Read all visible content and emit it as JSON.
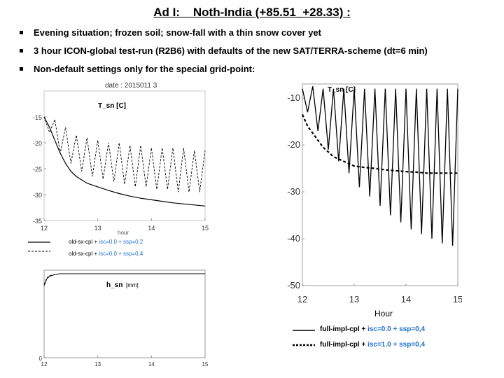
{
  "header": {
    "title": "Ad I:    Noth-India (+85.51_+28.33) :",
    "bullets": [
      "Evening situation; frozen soil; snow-fall with a thin snow cover yet",
      "3 hour ICON-global test-run (R2B6) with defaults of the new SAT/TERRA-scheme (dt=6 min)",
      "Non-default settings only for the special grid-point:"
    ]
  },
  "chart_data": [
    {
      "id": "tsn_old",
      "type": "line",
      "title": "T_sn [C]",
      "date_label": "date : 2015011 3",
      "xlabel": "hour",
      "x_ticks": [
        "12",
        "13",
        "14",
        "15"
      ],
      "y_ticks": [
        "-15",
        "-20",
        "-25",
        "-30",
        "-35"
      ],
      "xlim": [
        12,
        15
      ],
      "ylim": [
        -35,
        -10
      ],
      "series": [
        {
          "style": "dashed",
          "x": [
            12.0,
            12.1,
            12.2,
            12.3,
            12.4,
            12.5,
            12.6,
            12.7,
            12.8,
            12.9,
            13.0,
            13.1,
            13.2,
            13.3,
            13.4,
            13.5,
            13.6,
            13.7,
            13.8,
            13.9,
            14.0,
            14.1,
            14.2,
            14.3,
            14.4,
            14.5,
            14.6,
            14.7,
            14.8,
            14.9,
            15.0
          ],
          "y": [
            -15,
            -18,
            -15.5,
            -22,
            -17,
            -24,
            -18.5,
            -25.5,
            -19,
            -26.5,
            -19.5,
            -27,
            -20,
            -27.5,
            -20,
            -28,
            -20.5,
            -28.5,
            -20.5,
            -28.5,
            -21,
            -29,
            -21,
            -29,
            -21,
            -29.5,
            -21,
            -29.5,
            -21.5,
            -29.5,
            -21.5
          ]
        },
        {
          "style": "solid",
          "x": [
            12.0,
            12.1,
            12.2,
            12.3,
            12.4,
            12.5,
            12.6,
            12.8,
            13.0,
            13.2,
            13.4,
            13.6,
            13.8,
            14.0,
            14.2,
            14.4,
            14.6,
            14.8,
            15.0
          ],
          "y": [
            -15,
            -17,
            -19.5,
            -22,
            -24,
            -25.5,
            -26.5,
            -27.8,
            -28.5,
            -29.2,
            -29.8,
            -30.3,
            -30.7,
            -31,
            -31.3,
            -31.6,
            -31.8,
            -32,
            -32.2
          ]
        }
      ],
      "legend": [
        {
          "text": "old-sx-cpl + ",
          "blue": "isc=0.0 + ssp=0,2"
        },
        {
          "text": "old-sx-cpl + ",
          "blue": "isc=0.0 + ssp=0,4"
        }
      ]
    },
    {
      "id": "hsn_old",
      "type": "line",
      "title": "h_sn",
      "unit": "[mm]",
      "x_ticks": [
        "12",
        "13",
        "14",
        "15"
      ],
      "y_ticks": [
        "0"
      ],
      "xlim": [
        12,
        15
      ],
      "ylim": [
        0,
        1
      ],
      "series": [
        {
          "style": "solid",
          "x": [
            12.0,
            12.05,
            12.1,
            12.2,
            12.3,
            12.5,
            13.0,
            14.0,
            15.0
          ],
          "y": [
            0.82,
            0.9,
            0.93,
            0.95,
            0.96,
            0.96,
            0.96,
            0.96,
            0.96
          ]
        },
        {
          "style": "dashed",
          "x": [
            12.0,
            12.05,
            12.1,
            12.2,
            12.3,
            12.5,
            13.0,
            14.0,
            15.0
          ],
          "y": [
            0.84,
            0.91,
            0.94,
            0.95,
            0.96,
            0.96,
            0.96,
            0.96,
            0.96
          ]
        }
      ]
    },
    {
      "id": "tsn_new",
      "type": "line",
      "title": "T_sn [C]",
      "xlabel": "Hour",
      "x_ticks": [
        "12",
        "13",
        "14",
        "15"
      ],
      "y_ticks": [
        "-10",
        "-20",
        "-30",
        "-40",
        "-50"
      ],
      "xlim": [
        12,
        15
      ],
      "ylim": [
        -50,
        -7
      ],
      "series": [
        {
          "style": "solid",
          "x": [
            12.0,
            12.1,
            12.2,
            12.3,
            12.4,
            12.5,
            12.6,
            12.7,
            12.8,
            12.9,
            13.0,
            13.1,
            13.2,
            13.3,
            13.4,
            13.5,
            13.6,
            13.7,
            13.8,
            13.9,
            14.0,
            14.1,
            14.2,
            14.3,
            14.4,
            14.5,
            14.6,
            14.7,
            14.8,
            14.9,
            15.0
          ],
          "y": [
            -8,
            -13,
            -7.5,
            -17,
            -8,
            -21,
            -8,
            -23.5,
            -8,
            -26,
            -8,
            -29,
            -8,
            -31,
            -8,
            -33,
            -8,
            -35,
            -8,
            -36.5,
            -8,
            -38,
            -8,
            -39,
            -8,
            -40,
            -8,
            -41,
            -8,
            -41.5,
            -8
          ]
        },
        {
          "style": "dashed",
          "x": [
            12.0,
            12.1,
            12.2,
            12.3,
            12.4,
            12.5,
            12.6,
            12.7,
            12.8,
            12.9,
            13.0,
            13.2,
            13.4,
            13.6,
            13.8,
            14.0,
            14.2,
            14.4,
            14.6,
            14.8,
            15.0
          ],
          "y": [
            -13.5,
            -16,
            -17.5,
            -19,
            -20.5,
            -21.5,
            -22.5,
            -23,
            -23.5,
            -24,
            -24.5,
            -24.8,
            -25,
            -25.3,
            -25.5,
            -25.7,
            -25.8,
            -26,
            -26,
            -26,
            -26
          ]
        }
      ],
      "legend": [
        {
          "text": "full-impl-cpl + ",
          "blue": "isc=0.0 + ssp=0,4"
        },
        {
          "text": "full-impl-cpl + ",
          "blue": "isc=1.0 + ssp=0,4"
        }
      ]
    }
  ]
}
